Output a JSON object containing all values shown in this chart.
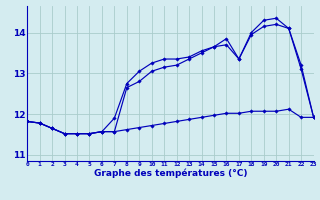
{
  "title": "Graphe des températures (°C)",
  "background_color": "#d4ecf0",
  "grid_color": "#aacccc",
  "line_color": "#0000bb",
  "axis_color": "#0000bb",
  "x_labels": [
    "0",
    "1",
    "2",
    "3",
    "4",
    "5",
    "6",
    "7",
    "8",
    "9",
    "10",
    "11",
    "12",
    "13",
    "14",
    "15",
    "16",
    "17",
    "18",
    "19",
    "20",
    "21",
    "22",
    "23"
  ],
  "xlim": [
    0,
    23
  ],
  "ylim": [
    10.85,
    14.65
  ],
  "yticks": [
    11,
    12,
    13,
    14
  ],
  "series1": [
    11.82,
    11.78,
    11.65,
    11.52,
    11.52,
    11.52,
    11.57,
    11.57,
    11.62,
    11.67,
    11.72,
    11.77,
    11.82,
    11.87,
    11.92,
    11.97,
    12.02,
    12.02,
    12.07,
    12.07,
    12.07,
    12.12,
    11.92,
    11.92
  ],
  "series2": [
    11.82,
    11.78,
    11.65,
    11.52,
    11.52,
    11.52,
    11.57,
    11.9,
    12.75,
    13.05,
    13.25,
    13.35,
    13.35,
    13.4,
    13.55,
    13.65,
    13.7,
    13.35,
    13.95,
    14.15,
    14.2,
    14.1,
    13.1,
    11.92
  ],
  "series3": [
    11.82,
    11.78,
    11.65,
    11.52,
    11.52,
    11.52,
    11.57,
    11.57,
    12.65,
    12.8,
    13.05,
    13.15,
    13.2,
    13.35,
    13.5,
    13.65,
    13.85,
    13.35,
    14.0,
    14.3,
    14.35,
    14.1,
    13.2,
    11.92
  ]
}
